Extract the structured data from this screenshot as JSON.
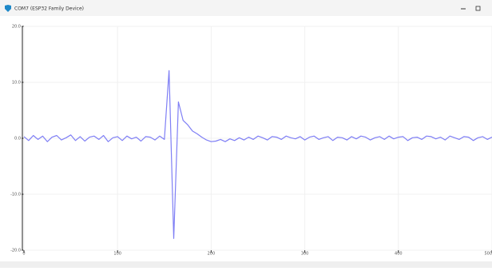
{
  "window_title": "COM7 (ESP32 Family Device)",
  "chart_data": {
    "type": "line",
    "x": [
      0,
      5,
      10,
      15,
      20,
      25,
      30,
      35,
      40,
      45,
      50,
      55,
      60,
      65,
      70,
      75,
      80,
      85,
      90,
      95,
      100,
      105,
      110,
      115,
      120,
      125,
      130,
      135,
      140,
      145,
      150,
      155,
      160,
      165,
      170,
      175,
      180,
      185,
      190,
      195,
      200,
      205,
      210,
      215,
      220,
      225,
      230,
      235,
      240,
      245,
      250,
      255,
      260,
      265,
      270,
      275,
      280,
      285,
      290,
      295,
      300,
      305,
      310,
      315,
      320,
      325,
      330,
      335,
      340,
      345,
      350,
      355,
      360,
      365,
      370,
      375,
      380,
      385,
      390,
      395,
      400,
      405,
      410,
      415,
      420,
      425,
      430,
      435,
      440,
      445,
      450,
      455,
      460,
      465,
      470,
      475,
      480,
      485,
      490,
      495,
      500
    ],
    "series": [
      {
        "color": "#7f7ff5",
        "values": [
          0.3,
          -0.4,
          0.5,
          -0.2,
          0.4,
          -0.6,
          0.2,
          0.5,
          -0.3,
          0.1,
          0.6,
          -0.4,
          0.3,
          -0.5,
          0.2,
          0.4,
          -0.2,
          0.5,
          -0.6,
          0.1,
          0.3,
          -0.4,
          0.4,
          -0.1,
          0.2,
          -0.5,
          0.3,
          0.2,
          -0.3,
          0.4,
          -0.2,
          12.1,
          -17.9,
          6.5,
          3.2,
          2.4,
          1.3,
          0.8,
          0.2,
          -0.3,
          -0.6,
          -0.5,
          -0.2,
          -0.6,
          -0.1,
          -0.4,
          0.1,
          -0.3,
          0.2,
          -0.2,
          0.4,
          0.1,
          -0.3,
          0.3,
          0.2,
          -0.2,
          0.4,
          0.1,
          -0.1,
          0.3,
          -0.3,
          0.2,
          0.4,
          -0.2,
          0.1,
          0.3,
          -0.4,
          0.2,
          0.1,
          -0.3,
          0.3,
          -0.1,
          0.4,
          0.2,
          -0.3,
          0.1,
          0.3,
          -0.2,
          0.4,
          -0.1,
          0.2,
          0.3,
          -0.4,
          0.1,
          0.2,
          -0.2,
          0.4,
          0.3,
          -0.1,
          0.2,
          -0.3,
          0.4,
          0.1,
          -0.2,
          0.3,
          0.2,
          -0.4,
          0.1,
          0.3,
          -0.2,
          0.2
        ]
      }
    ],
    "xlim": [
      0,
      500
    ],
    "xticks": [
      0,
      100,
      200,
      300,
      400,
      500
    ],
    "ylim": [
      -20,
      20
    ],
    "yticks": [
      {
        "value": -20,
        "label": "-20.0"
      },
      {
        "value": -10,
        "label": "-10.0"
      },
      {
        "value": 0,
        "label": "0.0"
      },
      {
        "value": 10,
        "label": "10.0"
      },
      {
        "value": 20,
        "label": "20.0"
      }
    ],
    "grid": true
  }
}
